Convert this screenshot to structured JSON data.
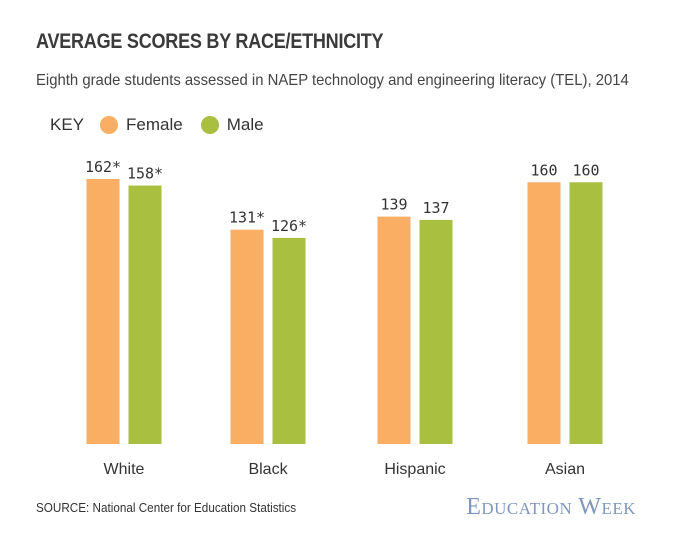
{
  "header": {
    "title": "AVERAGE SCORES BY RACE/ETHNICITY",
    "subtitle": "Eighth grade students assessed in NAEP technology and engineering literacy (TEL), 2014"
  },
  "legend": {
    "key_label": "KEY",
    "items": [
      {
        "label": "Female",
        "color": "#f9ae64"
      },
      {
        "label": "Male",
        "color": "#a8bf3f"
      }
    ]
  },
  "footer": {
    "source": "SOURCE: National Center for Education Statistics",
    "brand": "Education Week"
  },
  "chart_data": {
    "type": "bar",
    "title": "AVERAGE SCORES BY RACE/ETHNICITY",
    "categories": [
      "White",
      "Black",
      "Hispanic",
      "Asian"
    ],
    "series": [
      {
        "name": "Female",
        "color": "#f9ae64",
        "values": [
          162,
          131,
          139,
          160
        ],
        "labels": [
          "162*",
          "131*",
          "139",
          "160"
        ]
      },
      {
        "name": "Male",
        "color": "#a8bf3f",
        "values": [
          158,
          126,
          137,
          160
        ],
        "labels": [
          "158*",
          "126*",
          "137",
          "160"
        ]
      }
    ],
    "legend_position": "top-left",
    "grid": false
  }
}
